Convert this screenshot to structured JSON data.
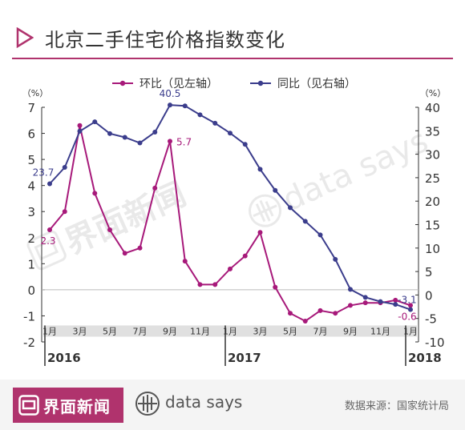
{
  "title": "北京二手住宅价格指数变化",
  "footer": {
    "brand": "界面新闻",
    "tagline": "data says",
    "source": "数据来源：国家统计局"
  },
  "watermark": {
    "brand": "界面新闻",
    "tagline": "data says"
  },
  "colors": {
    "accent": "#b0336d",
    "mom_series": "#a7197a",
    "yoy_series": "#3b3d8c",
    "axis_strip": "#e0e0e0"
  },
  "chart_data": {
    "type": "line",
    "dual_axis": true,
    "legend_position": "top",
    "x_ticks": [
      "1月",
      "3月",
      "5月",
      "7月",
      "9月",
      "11月",
      "1月",
      "3月",
      "5月",
      "7月",
      "9月",
      "11月",
      "1月"
    ],
    "x_tick_index": [
      0,
      2,
      4,
      6,
      8,
      10,
      12,
      14,
      16,
      18,
      20,
      22,
      24
    ],
    "years": [
      {
        "label": "2016",
        "index": 0
      },
      {
        "label": "2017",
        "index": 12
      },
      {
        "label": "2018",
        "index": 24
      }
    ],
    "left_axis": {
      "unit": "（%）",
      "min": -2,
      "max": 7,
      "ticks": [
        7,
        6,
        5,
        4,
        3,
        2,
        1,
        0,
        -1,
        -2
      ]
    },
    "right_axis": {
      "unit": "（%）",
      "min": -10,
      "max": 40,
      "ticks": [
        40,
        35,
        30,
        25,
        20,
        15,
        10,
        5,
        0,
        -5,
        -10
      ]
    },
    "series": [
      {
        "name": "环比（见左轴）",
        "axis": "left",
        "values": [
          2.3,
          3.0,
          6.3,
          3.7,
          2.3,
          1.4,
          1.6,
          3.9,
          5.7,
          1.1,
          0.2,
          0.2,
          0.8,
          1.3,
          2.2,
          0.1,
          -0.9,
          -1.2,
          -0.8,
          -0.9,
          -0.6,
          -0.5,
          -0.5,
          -0.4,
          -0.6
        ]
      },
      {
        "name": "同比（见右轴）",
        "axis": "right",
        "values": [
          23.7,
          27.2,
          34.9,
          36.9,
          34.4,
          33.6,
          32.4,
          34.7,
          40.5,
          40.3,
          38.4,
          36.6,
          34.5,
          32.1,
          26.8,
          22.3,
          18.6,
          15.7,
          12.8,
          7.6,
          1.2,
          -0.5,
          -1.4,
          -2.0,
          -3.1
        ]
      }
    ],
    "data_labels": [
      {
        "series": 0,
        "index": 0,
        "text": "2.3"
      },
      {
        "series": 0,
        "index": 8,
        "text": "5.7"
      },
      {
        "series": 0,
        "index": 24,
        "text": "-0.6"
      },
      {
        "series": 1,
        "index": 0,
        "text": "23.7"
      },
      {
        "series": 1,
        "index": 8,
        "text": "40.5"
      },
      {
        "series": 1,
        "index": 24,
        "text": "-3.1"
      }
    ]
  }
}
